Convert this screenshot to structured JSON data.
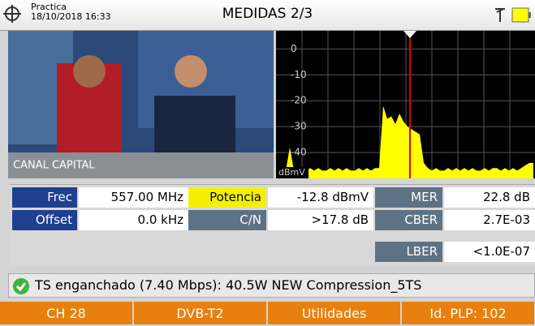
{
  "header": {
    "profile": "Practica",
    "datetime": "18/10/2018 16:33",
    "title": "MEDIDAS 2/3"
  },
  "video": {
    "channel_name": "CANAL CAPITAL"
  },
  "spectrum": {
    "ylim": [
      -50,
      7
    ],
    "yticks": [
      0,
      -10,
      -20,
      -30,
      -40
    ],
    "unit": "dBmV",
    "trace_color": "#ffff00",
    "marker_color": "#e00000",
    "trace": [
      -47,
      -46,
      -47,
      -38,
      -47,
      -46,
      -47,
      -47,
      -46,
      -47,
      -46,
      -47,
      -47,
      -46,
      -47,
      -46,
      -47,
      -46,
      -47,
      -47,
      -46,
      -47,
      -46,
      -47,
      -46,
      -46,
      -22,
      -27,
      -26,
      -29,
      -25,
      -28,
      -30,
      -31,
      -32,
      -33,
      -44,
      -46,
      -47,
      -46,
      -47,
      -47,
      -46,
      -47,
      -46,
      -47,
      -46,
      -47,
      -46,
      -47,
      -47,
      -46,
      -47,
      -46,
      -46,
      -47,
      -46,
      -47,
      -46,
      -47,
      -46,
      -45,
      -44,
      -44
    ]
  },
  "measurements": {
    "rows": [
      [
        {
          "label": "Frec",
          "value": "557.00 MHz"
        },
        {
          "label": "Potencia",
          "value": "-12.8 dBmV"
        },
        {
          "label": "MER",
          "value": "22.8 dB"
        }
      ],
      [
        {
          "label": "Offset",
          "value": "0.0 kHz"
        },
        {
          "label": "C/N",
          "value": ">17.8 dB"
        },
        {
          "label": "CBER",
          "value": "2.7E-03"
        }
      ],
      [
        {
          "label": "LBER",
          "value": "<1.0E-07"
        }
      ]
    ]
  },
  "status": {
    "text": "TS enganchado (7.40 Mbps): 40.5W NEW Compression_5TS"
  },
  "buttons": [
    "CH 28",
    "DVB-T2",
    "Utilidades",
    "Id. PLP: 102"
  ]
}
